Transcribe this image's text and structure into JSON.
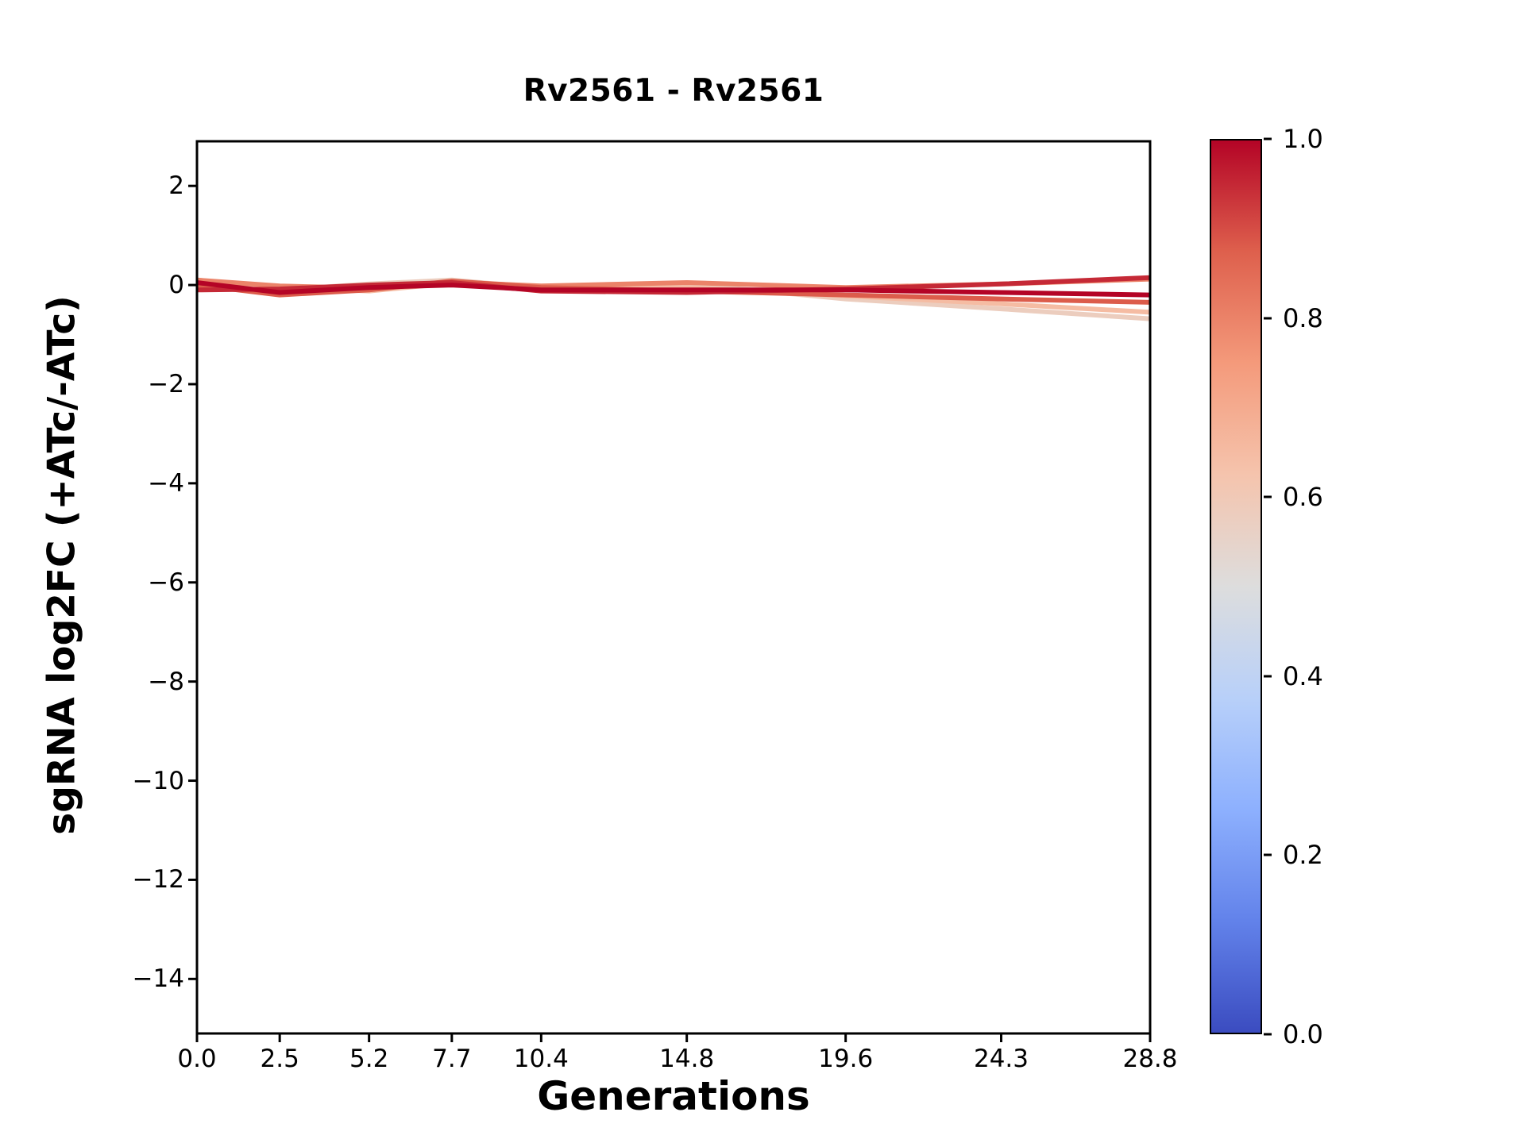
{
  "figure": {
    "title": "Rv2561 - Rv2561",
    "xlabel": "Generations",
    "ylabel": "sgRNA log2FC (+ATc/-ATc)"
  },
  "chart_data": {
    "type": "line",
    "title": "Rv2561 - Rv2561",
    "xlabel": "Generations",
    "ylabel": "sgRNA log2FC (+ATc/-ATc)",
    "grid": false,
    "legend": "none",
    "colormap": "coolwarm",
    "xlim": [
      0,
      28.8
    ],
    "ylim": [
      -15.1,
      2.9
    ],
    "x": [
      0.0,
      2.5,
      5.2,
      7.7,
      10.4,
      14.8,
      19.6,
      24.3,
      28.8
    ],
    "xticks": [
      {
        "v": 0.0,
        "label": "0.0"
      },
      {
        "v": 2.5,
        "label": "2.5"
      },
      {
        "v": 5.2,
        "label": "5.2"
      },
      {
        "v": 7.7,
        "label": "7.7"
      },
      {
        "v": 10.4,
        "label": "10.4"
      },
      {
        "v": 14.8,
        "label": "14.8"
      },
      {
        "v": 19.6,
        "label": "19.6"
      },
      {
        "v": 24.3,
        "label": "24.3"
      },
      {
        "v": 28.8,
        "label": "28.8"
      }
    ],
    "yticks": [
      {
        "v": 2,
        "label": "2"
      },
      {
        "v": 0,
        "label": "0"
      },
      {
        "v": -2,
        "label": "−2"
      },
      {
        "v": -4,
        "label": "−4"
      },
      {
        "v": -6,
        "label": "−6"
      },
      {
        "v": -8,
        "label": "−8"
      },
      {
        "v": -10,
        "label": "−10"
      },
      {
        "v": -12,
        "label": "−12"
      },
      {
        "v": -14,
        "label": "−14"
      }
    ],
    "colorbar": {
      "min": 0.0,
      "max": 1.0,
      "ticks": [
        {
          "v": 1.0,
          "label": "1.0"
        },
        {
          "v": 0.8,
          "label": "0.8"
        },
        {
          "v": 0.6,
          "label": "0.6"
        },
        {
          "v": 0.4,
          "label": "0.4"
        },
        {
          "v": 0.2,
          "label": "0.2"
        },
        {
          "v": 0.0,
          "label": "0.0"
        }
      ]
    },
    "series": [
      {
        "name": "line_1",
        "color_value": 0.58,
        "y": [
          -0.08,
          -0.1,
          0.02,
          0.1,
          -0.06,
          0.02,
          -0.28,
          -0.48,
          -0.68
        ]
      },
      {
        "name": "line_2",
        "color_value": 0.65,
        "y": [
          -0.02,
          -0.05,
          -0.12,
          0.04,
          -0.1,
          -0.05,
          -0.22,
          -0.38,
          -0.55
        ]
      },
      {
        "name": "line_3",
        "color_value": 0.8,
        "y": [
          0.1,
          -0.02,
          -0.06,
          0.06,
          -0.02,
          0.05,
          -0.05,
          0.02,
          0.12
        ]
      },
      {
        "name": "line_4",
        "color_value": 0.88,
        "y": [
          0.0,
          -0.2,
          -0.1,
          0.08,
          -0.05,
          -0.12,
          -0.2,
          -0.28,
          -0.35
        ]
      },
      {
        "name": "line_5",
        "color_value": 0.95,
        "y": [
          -0.1,
          -0.08,
          0.0,
          0.05,
          -0.12,
          -0.15,
          -0.08,
          0.02,
          0.15
        ]
      },
      {
        "name": "line_6",
        "color_value": 1.0,
        "y": [
          0.05,
          -0.15,
          -0.05,
          0.0,
          -0.1,
          -0.1,
          -0.1,
          -0.15,
          -0.2
        ]
      }
    ]
  }
}
